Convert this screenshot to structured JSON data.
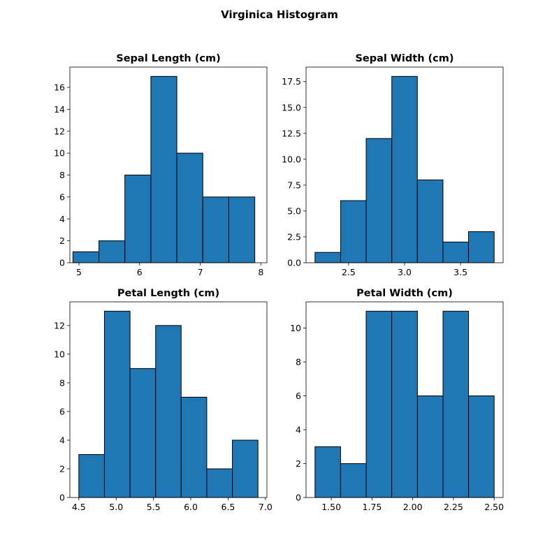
{
  "figure_title": "Virginica Histogram",
  "style": {
    "bar_color": "#1f77b4",
    "edge_color": "#000000"
  },
  "chart_data": [
    {
      "type": "bar",
      "title": "Sepal Length (cm)",
      "xlim": [
        4.85,
        8.1
      ],
      "ylim": [
        0,
        17.85
      ],
      "xticks": [
        5,
        6,
        7,
        8
      ],
      "xtick_labels": [
        "5",
        "6",
        "7",
        "8"
      ],
      "yticks": [
        0,
        2,
        4,
        6,
        8,
        10,
        12,
        14,
        16
      ],
      "ytick_labels": [
        "0",
        "2",
        "4",
        "6",
        "8",
        "10",
        "12",
        "14",
        "16"
      ],
      "bin_edges": [
        4.9,
        5.329,
        5.757,
        6.186,
        6.614,
        7.043,
        7.471,
        7.9
      ],
      "values": [
        1,
        2,
        8,
        17,
        10,
        6,
        6
      ]
    },
    {
      "type": "bar",
      "title": "Sepal Width (cm)",
      "xlim": [
        2.12,
        3.88
      ],
      "ylim": [
        0,
        18.9
      ],
      "xticks": [
        2.5,
        3.0,
        3.5
      ],
      "xtick_labels": [
        "2.5",
        "3.0",
        "3.5"
      ],
      "yticks": [
        0,
        2.5,
        5.0,
        7.5,
        10.0,
        12.5,
        15.0,
        17.5
      ],
      "ytick_labels": [
        "0.0",
        "2.5",
        "5.0",
        "7.5",
        "10.0",
        "12.5",
        "15.0",
        "17.5"
      ],
      "bin_edges": [
        2.2,
        2.429,
        2.657,
        2.886,
        3.114,
        3.343,
        3.571,
        3.8
      ],
      "values": [
        1,
        6,
        12,
        18,
        8,
        2,
        3
      ]
    },
    {
      "type": "bar",
      "title": "Petal Length (cm)",
      "xlim": [
        4.38,
        7.02
      ],
      "ylim": [
        0,
        13.65
      ],
      "xticks": [
        4.5,
        5.0,
        5.5,
        6.0,
        6.5,
        7.0
      ],
      "xtick_labels": [
        "4.5",
        "5.0",
        "5.5",
        "6.0",
        "6.5",
        "7.0"
      ],
      "yticks": [
        0,
        2,
        4,
        6,
        8,
        10,
        12
      ],
      "ytick_labels": [
        "0",
        "2",
        "4",
        "6",
        "8",
        "10",
        "12"
      ],
      "bin_edges": [
        4.5,
        4.843,
        5.186,
        5.529,
        5.871,
        6.214,
        6.557,
        6.9
      ],
      "values": [
        3,
        13,
        9,
        12,
        7,
        2,
        4
      ]
    },
    {
      "type": "bar",
      "title": "Petal Width (cm)",
      "xlim": [
        1.345,
        2.555
      ],
      "ylim": [
        0,
        11.55
      ],
      "xticks": [
        1.5,
        1.75,
        2.0,
        2.25,
        2.5
      ],
      "xtick_labels": [
        "1.50",
        "1.75",
        "2.00",
        "2.25",
        "2.50"
      ],
      "yticks": [
        0,
        2,
        4,
        6,
        8,
        10
      ],
      "ytick_labels": [
        "0",
        "2",
        "4",
        "6",
        "8",
        "10"
      ],
      "bin_edges": [
        1.4,
        1.557,
        1.714,
        1.871,
        2.029,
        2.186,
        2.343,
        2.5
      ],
      "values": [
        3,
        2,
        11,
        11,
        6,
        11,
        6
      ]
    }
  ]
}
